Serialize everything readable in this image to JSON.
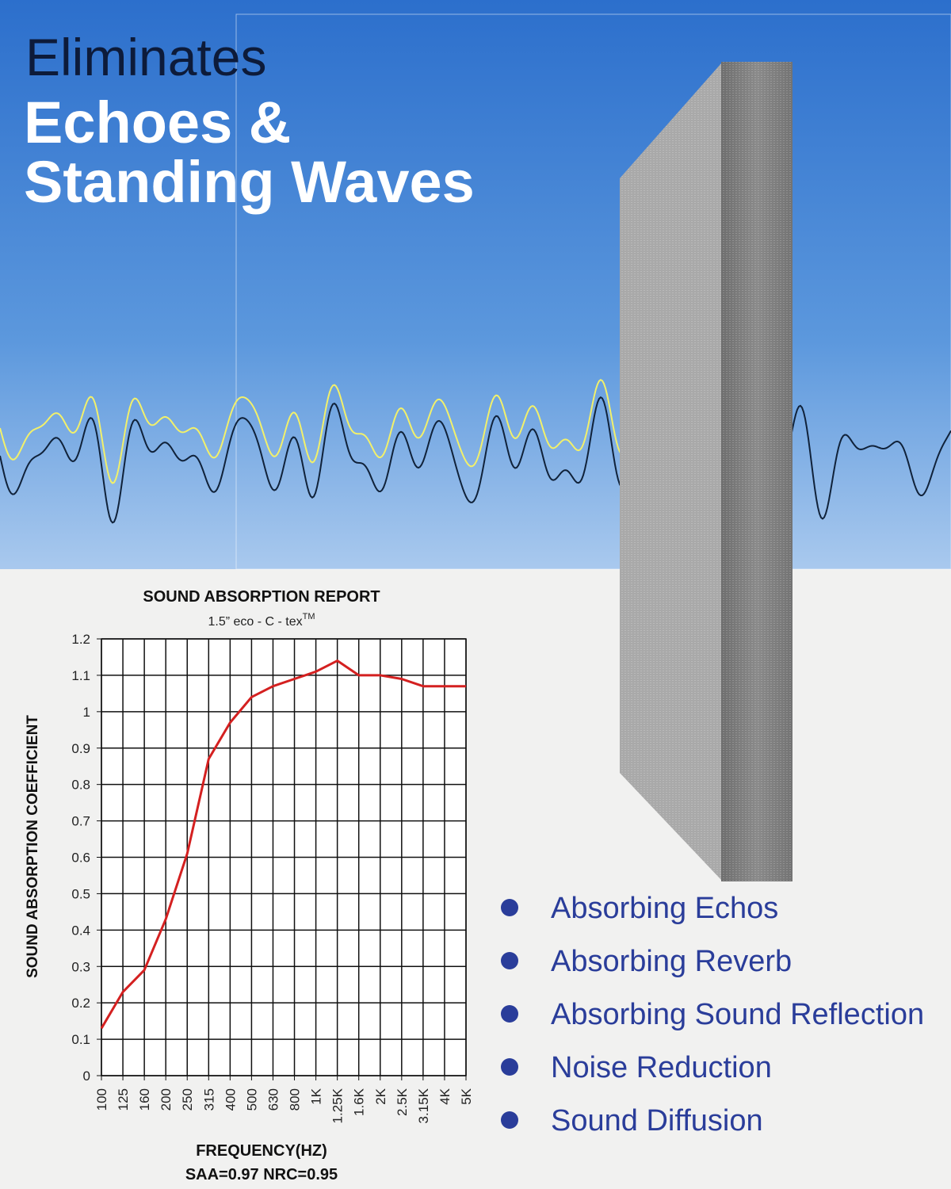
{
  "headline": {
    "line1": "Eliminates",
    "line2": "Echoes &",
    "line3": "Standing Waves"
  },
  "features": [
    "Absorbing Echos",
    "Absorbing Reverb",
    "Absorbing Sound Reflection",
    "Noise Reduction",
    "Sound Diffusion"
  ],
  "chart_data": {
    "type": "line",
    "title": "SOUND ABSORPTION REPORT",
    "subtitle": "1.5” eco - C - tex",
    "subtitle_mark": "TM",
    "x_label": "FREQUENCY(HZ)",
    "y_label": "SOUND ABSORPTION COEFFICIENT",
    "annotation": "SAA=0.97 NRC=0.95",
    "categories": [
      "100",
      "125",
      "160",
      "200",
      "250",
      "315",
      "400",
      "500",
      "630",
      "800",
      "1K",
      "1.25K",
      "1.6K",
      "2K",
      "2.5K",
      "3.15K",
      "4K",
      "5K"
    ],
    "series": [
      {
        "name": "1.5” eco - C - tex",
        "color": "#d42020",
        "values": [
          0.13,
          0.23,
          0.29,
          0.43,
          0.61,
          0.87,
          0.97,
          1.04,
          1.07,
          1.09,
          1.11,
          1.14,
          1.1,
          1.1,
          1.09,
          1.07,
          1.07,
          1.07
        ]
      }
    ],
    "ylim": [
      0,
      1.2
    ],
    "yticks": [
      0,
      0.1,
      0.2,
      0.3,
      0.4,
      0.5,
      0.6,
      0.7,
      0.8,
      0.9,
      1,
      1.1,
      1.2
    ],
    "grid": true
  }
}
